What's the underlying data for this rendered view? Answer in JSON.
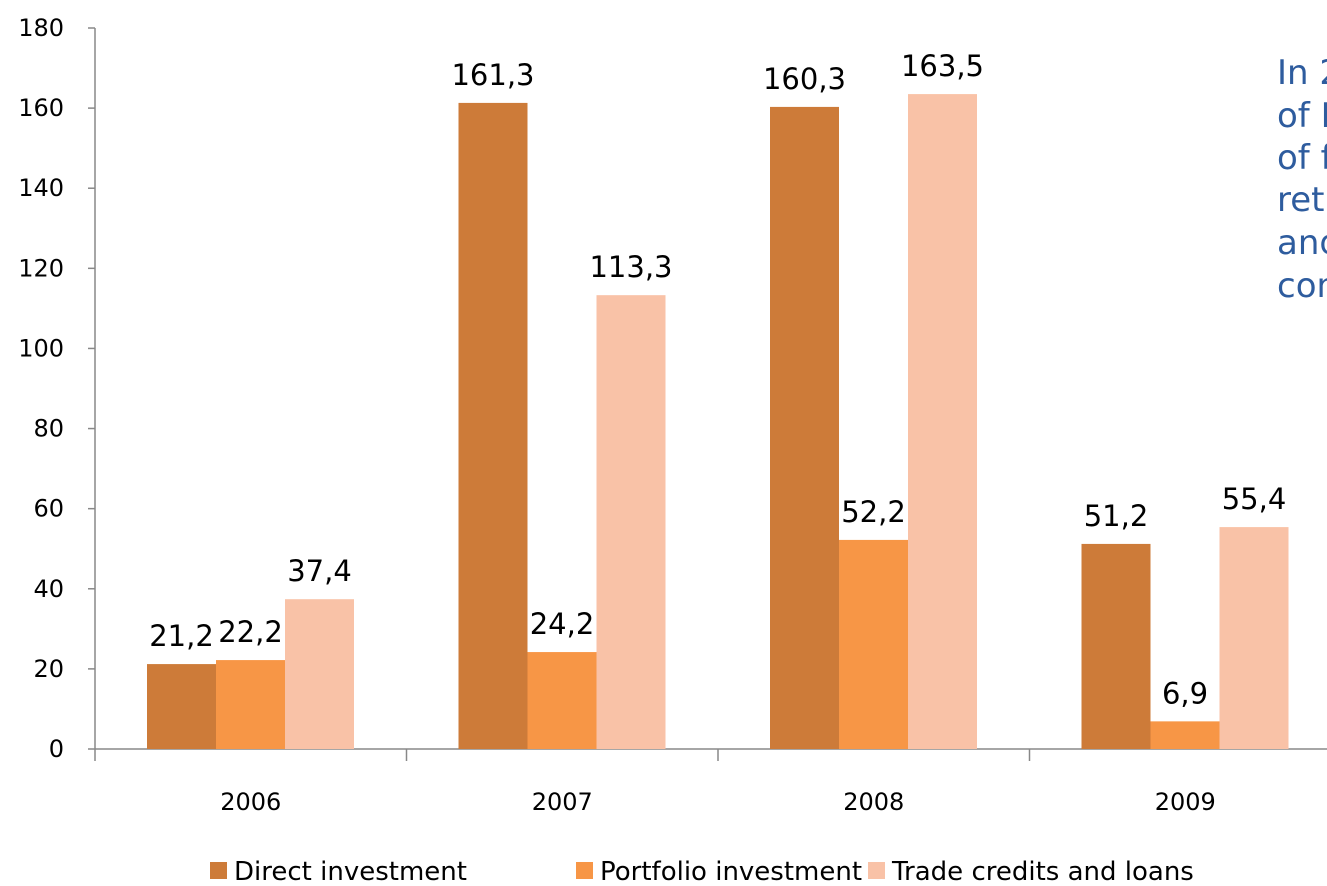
{
  "chart_data": {
    "type": "bar",
    "categories": [
      "2006",
      "2007",
      "2008",
      "2009"
    ],
    "series": [
      {
        "name": "Direct investment",
        "values": [
          21.2,
          161.3,
          160.3,
          51.2
        ],
        "labels": [
          "21,2",
          "161,3",
          "160,3",
          "51,2"
        ],
        "color": "#cd7b39"
      },
      {
        "name": "Portfolio investment",
        "values": [
          22.2,
          24.2,
          52.2,
          6.9
        ],
        "labels": [
          "22,2",
          "24,2",
          "52,2",
          "6,9"
        ],
        "color": "#f79646"
      },
      {
        "name": "Trade credits and loans",
        "values": [
          37.4,
          113.3,
          163.5,
          55.4
        ],
        "labels": [
          "37,4",
          "113,3",
          "163,5",
          "55,4"
        ],
        "color": "#f9c2a7"
      }
    ],
    "ylim": [
      0,
      180
    ],
    "yticks": [
      0,
      20,
      40,
      60,
      80,
      100,
      120,
      140,
      160,
      180
    ],
    "grid": false,
    "legend_position": "bottom",
    "title": "",
    "xlabel": "",
    "ylabel": ""
  },
  "side_note": {
    "lines": [
      "In 2",
      "of I",
      "of f",
      "ret",
      "and",
      "con"
    ],
    "color": "#2e5c9e"
  }
}
